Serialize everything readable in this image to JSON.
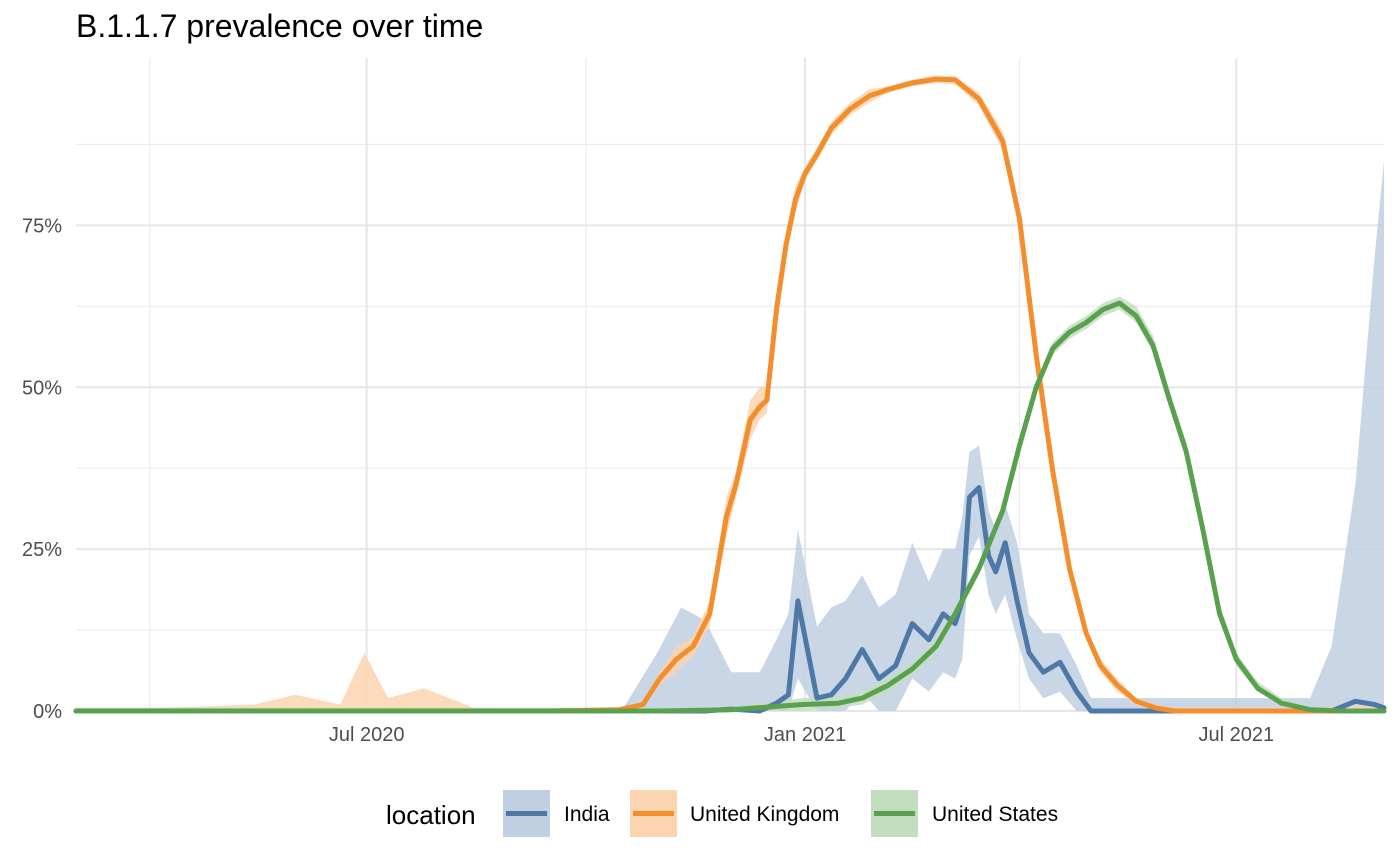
{
  "chart_data": {
    "type": "line",
    "title": "B.1.1.7 prevalence over time",
    "xlabel": "",
    "ylabel": "",
    "x_tick_labels": [
      "Jul 2020",
      "Jan 2021",
      "Jul 2021"
    ],
    "y_tick_labels": [
      "0%",
      "25%",
      "50%",
      "75%"
    ],
    "ylim": [
      0,
      0.99
    ],
    "xlim": [
      "2020-03-01",
      "2021-09-01"
    ],
    "grid": true,
    "legend": {
      "title": "location",
      "position": "bottom"
    },
    "series": [
      {
        "name": "India",
        "color": "#4E79A7",
        "band_color": "#C0CFE1",
        "x": [
          "2020-03-01",
          "2020-10-16",
          "2020-10-31",
          "2020-11-10",
          "2020-11-20",
          "2020-12-01",
          "2020-12-13",
          "2020-12-20",
          "2020-12-25",
          "2020-12-29",
          "2021-01-06",
          "2021-01-12",
          "2021-01-18",
          "2021-01-25",
          "2021-02-01",
          "2021-02-08",
          "2021-02-15",
          "2021-02-22",
          "2021-02-28",
          "2021-03-05",
          "2021-03-08",
          "2021-03-11",
          "2021-03-15",
          "2021-03-19",
          "2021-03-22",
          "2021-03-26",
          "2021-03-31",
          "2021-04-05",
          "2021-04-11",
          "2021-04-18",
          "2021-04-25",
          "2021-05-01",
          "2021-05-07",
          "2021-05-15",
          "2021-06-01",
          "2021-07-01",
          "2021-08-01",
          "2021-08-10",
          "2021-08-20",
          "2021-08-28",
          "2021-09-01"
        ],
        "y": [
          0.0,
          0.0,
          0.0,
          0.0,
          0.0,
          0.003,
          0.0,
          0.012,
          0.025,
          0.17,
          0.02,
          0.025,
          0.05,
          0.095,
          0.05,
          0.07,
          0.135,
          0.11,
          0.15,
          0.135,
          0.17,
          0.33,
          0.345,
          0.24,
          0.215,
          0.26,
          0.17,
          0.09,
          0.06,
          0.075,
          0.03,
          0.0,
          0.0,
          0.0,
          0.0,
          0.0,
          0.0,
          0.0,
          0.015,
          0.01,
          0.005
        ],
        "lower": [
          0.0,
          0.0,
          0.0,
          0.0,
          0.0,
          0.0,
          0.0,
          0.0,
          0.0,
          0.05,
          0.0,
          0.0,
          0.0,
          0.03,
          0.0,
          0.0,
          0.05,
          0.03,
          0.06,
          0.05,
          0.08,
          0.24,
          0.27,
          0.18,
          0.15,
          0.18,
          0.11,
          0.05,
          0.02,
          0.03,
          0.0,
          0.0,
          0.0,
          0.0,
          0.0,
          0.0,
          0.0,
          0.0,
          0.0,
          0.0,
          0.0
        ],
        "upper": [
          0.0,
          0.0,
          0.09,
          0.16,
          0.14,
          0.06,
          0.06,
          0.11,
          0.15,
          0.28,
          0.13,
          0.16,
          0.17,
          0.21,
          0.16,
          0.18,
          0.26,
          0.2,
          0.25,
          0.25,
          0.3,
          0.4,
          0.41,
          0.31,
          0.28,
          0.32,
          0.26,
          0.15,
          0.12,
          0.12,
          0.07,
          0.02,
          0.02,
          0.02,
          0.02,
          0.02,
          0.02,
          0.1,
          0.35,
          0.7,
          0.85
        ]
      },
      {
        "name": "United Kingdom",
        "color": "#F28E2B",
        "band_color": "#FBD4B0",
        "x": [
          "2020-03-01",
          "2020-05-15",
          "2020-06-01",
          "2020-06-20",
          "2020-06-30",
          "2020-07-10",
          "2020-07-25",
          "2020-08-15",
          "2020-09-15",
          "2020-10-15",
          "2020-10-25",
          "2020-11-01",
          "2020-11-08",
          "2020-11-15",
          "2020-11-22",
          "2020-11-29",
          "2020-12-03",
          "2020-12-09",
          "2020-12-13",
          "2020-12-16",
          "2020-12-20",
          "2020-12-24",
          "2020-12-28",
          "2021-01-01",
          "2021-01-06",
          "2021-01-12",
          "2021-01-20",
          "2021-01-28",
          "2021-02-05",
          "2021-02-15",
          "2021-02-25",
          "2021-03-05",
          "2021-03-15",
          "2021-03-25",
          "2021-04-01",
          "2021-04-08",
          "2021-04-15",
          "2021-04-22",
          "2021-04-29",
          "2021-05-05",
          "2021-05-12",
          "2021-05-20",
          "2021-05-28",
          "2021-06-05",
          "2021-06-15",
          "2021-06-25",
          "2021-07-10",
          "2021-08-01",
          "2021-09-01"
        ],
        "y": [
          0.0,
          0.0,
          0.0,
          0.0,
          0.0,
          0.0,
          0.0,
          0.0,
          0.0,
          0.002,
          0.01,
          0.05,
          0.08,
          0.1,
          0.15,
          0.3,
          0.35,
          0.45,
          0.47,
          0.48,
          0.62,
          0.72,
          0.79,
          0.83,
          0.86,
          0.9,
          0.93,
          0.95,
          0.96,
          0.97,
          0.976,
          0.975,
          0.945,
          0.88,
          0.76,
          0.55,
          0.37,
          0.22,
          0.12,
          0.07,
          0.04,
          0.015,
          0.005,
          0.0,
          0.0,
          0.0,
          0.0,
          0.0,
          0.0
        ],
        "lower": [
          0.0,
          0.0,
          0.0,
          0.0,
          0.0,
          0.0,
          0.0,
          0.0,
          0.0,
          0.0,
          0.005,
          0.04,
          0.06,
          0.085,
          0.13,
          0.27,
          0.33,
          0.42,
          0.45,
          0.46,
          0.6,
          0.7,
          0.77,
          0.82,
          0.85,
          0.89,
          0.92,
          0.94,
          0.955,
          0.965,
          0.97,
          0.968,
          0.935,
          0.865,
          0.745,
          0.535,
          0.36,
          0.21,
          0.11,
          0.06,
          0.03,
          0.01,
          0.0,
          0.0,
          0.0,
          0.0,
          0.0,
          0.0,
          0.0
        ],
        "upper": [
          0.0,
          0.01,
          0.025,
          0.01,
          0.09,
          0.02,
          0.035,
          0.005,
          0.003,
          0.005,
          0.015,
          0.06,
          0.1,
          0.115,
          0.17,
          0.33,
          0.37,
          0.48,
          0.5,
          0.5,
          0.64,
          0.74,
          0.81,
          0.84,
          0.87,
          0.91,
          0.94,
          0.96,
          0.965,
          0.975,
          0.982,
          0.98,
          0.955,
          0.895,
          0.775,
          0.565,
          0.38,
          0.23,
          0.13,
          0.08,
          0.05,
          0.02,
          0.01,
          0.005,
          0.005,
          0.005,
          0.005,
          0.005,
          0.01
        ]
      },
      {
        "name": "United States",
        "color": "#59A14F",
        "band_color": "#C3DEBE",
        "x": [
          "2020-03-01",
          "2020-11-01",
          "2020-12-01",
          "2020-12-31",
          "2021-01-15",
          "2021-01-25",
          "2021-02-05",
          "2021-02-15",
          "2021-02-25",
          "2021-03-05",
          "2021-03-15",
          "2021-03-25",
          "2021-04-01",
          "2021-04-08",
          "2021-04-15",
          "2021-04-22",
          "2021-04-29",
          "2021-05-06",
          "2021-05-13",
          "2021-05-20",
          "2021-05-27",
          "2021-06-03",
          "2021-06-10",
          "2021-06-17",
          "2021-06-24",
          "2021-07-01",
          "2021-07-10",
          "2021-07-20",
          "2021-08-01",
          "2021-08-15",
          "2021-09-01"
        ],
        "y": [
          0.0,
          0.0,
          0.002,
          0.01,
          0.012,
          0.02,
          0.04,
          0.065,
          0.1,
          0.15,
          0.22,
          0.31,
          0.41,
          0.5,
          0.56,
          0.585,
          0.6,
          0.62,
          0.63,
          0.61,
          0.565,
          0.48,
          0.4,
          0.28,
          0.15,
          0.08,
          0.035,
          0.012,
          0.002,
          0.0,
          0.0
        ],
        "lower": [
          0.0,
          0.0,
          0.0,
          0.0,
          0.005,
          0.01,
          0.03,
          0.055,
          0.09,
          0.14,
          0.21,
          0.3,
          0.4,
          0.49,
          0.55,
          0.575,
          0.59,
          0.61,
          0.62,
          0.6,
          0.555,
          0.47,
          0.39,
          0.27,
          0.14,
          0.07,
          0.03,
          0.01,
          0.0,
          0.0,
          0.0
        ],
        "upper": [
          0.005,
          0.005,
          0.006,
          0.02,
          0.022,
          0.03,
          0.05,
          0.075,
          0.11,
          0.16,
          0.23,
          0.32,
          0.42,
          0.51,
          0.57,
          0.595,
          0.61,
          0.63,
          0.64,
          0.625,
          0.58,
          0.495,
          0.415,
          0.295,
          0.165,
          0.09,
          0.045,
          0.02,
          0.006,
          0.004,
          0.004
        ]
      }
    ]
  }
}
